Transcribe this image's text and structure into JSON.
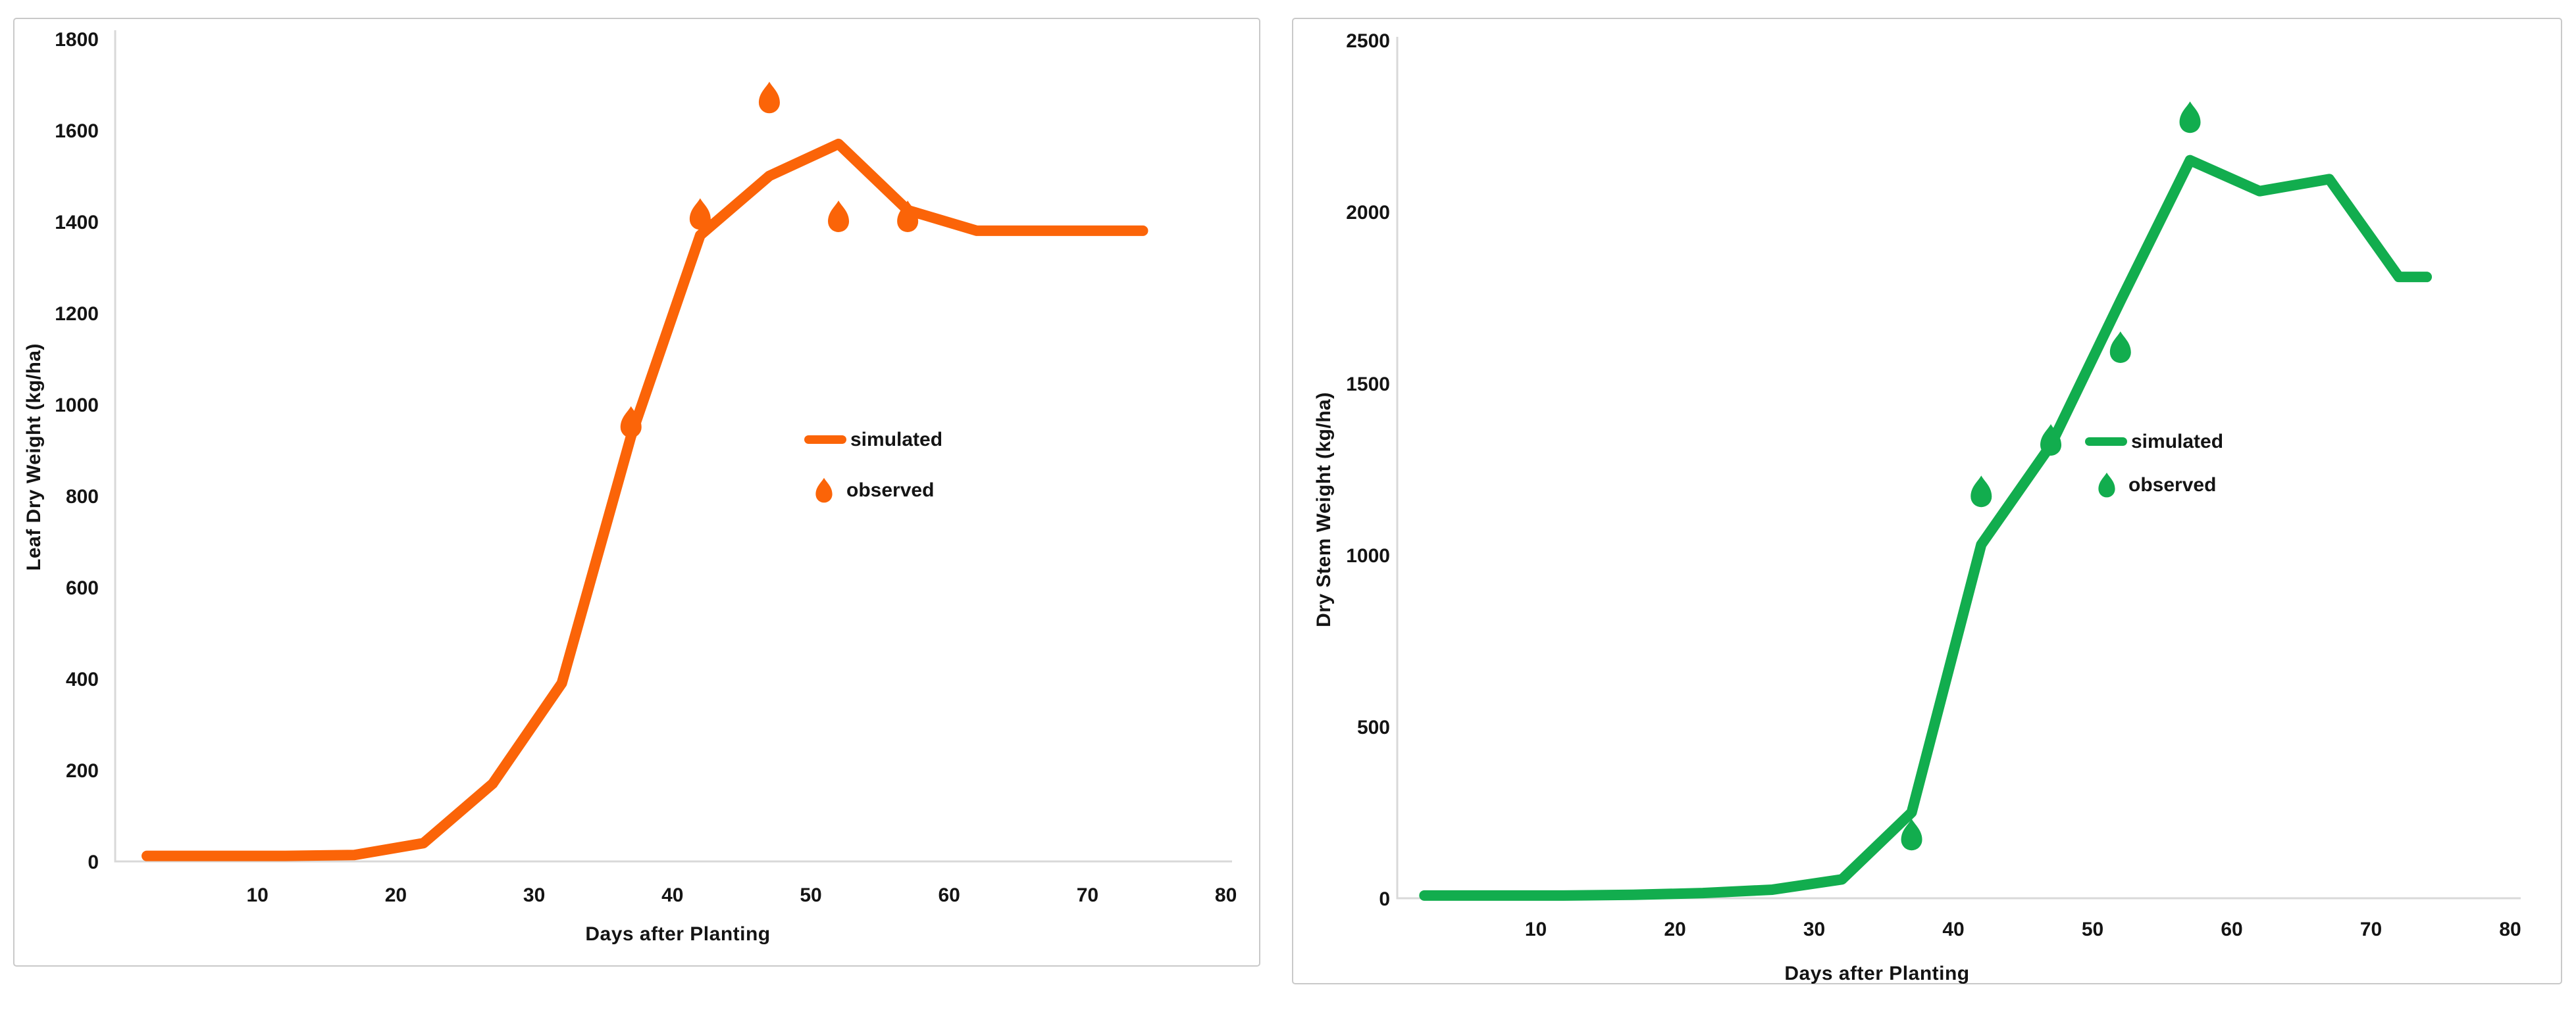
{
  "figure": {
    "description": "Two crop-model evaluation charts: simulated lines vs observed points",
    "background": "#ffffff"
  },
  "chart_data": [
    {
      "type": "line",
      "title": "",
      "xlabel": "Days after Planting",
      "ylabel": "Leaf Dry Weight (kg/ha)",
      "xlim": [
        0,
        80
      ],
      "ylim": [
        0,
        1800
      ],
      "x_ticks": [
        10,
        20,
        30,
        40,
        50,
        60,
        70,
        80
      ],
      "y_ticks": [
        0,
        200,
        400,
        600,
        800,
        1000,
        1200,
        1400,
        1600,
        1800
      ],
      "grid": false,
      "legend": [
        "simulated",
        "observed"
      ],
      "legend_position": "center-right",
      "color": "#fb6408",
      "axis_color": "#d9d9d9",
      "series": [
        {
          "name": "simulated",
          "style": "line",
          "x": [
            2,
            7,
            12,
            17,
            22,
            27,
            32,
            37,
            42,
            47,
            52,
            57,
            62,
            67,
            72,
            74
          ],
          "y": [
            12,
            12,
            12,
            14,
            40,
            170,
            390,
            930,
            1370,
            1500,
            1570,
            1425,
            1380,
            1380,
            1380,
            1380
          ]
        },
        {
          "name": "observed",
          "style": "scatter-drop",
          "x": [
            37,
            42,
            47,
            52,
            57
          ],
          "y": [
            950,
            1405,
            1660,
            1400,
            1400
          ]
        }
      ]
    },
    {
      "type": "line",
      "title": "",
      "xlabel": "Days after Planting",
      "ylabel": "Dry Stem Weight (kg/ha)",
      "xlim": [
        0,
        80
      ],
      "ylim": [
        0,
        2500
      ],
      "x_ticks": [
        10,
        20,
        30,
        40,
        50,
        60,
        70,
        80
      ],
      "y_ticks": [
        0,
        500,
        1000,
        1500,
        2000,
        2500
      ],
      "grid": false,
      "legend": [
        "simulated",
        "observed"
      ],
      "legend_position": "center-right",
      "color": "#12ad4e",
      "axis_color": "#d9d9d9",
      "series": [
        {
          "name": "simulated",
          "style": "line",
          "x": [
            2,
            7,
            12,
            17,
            22,
            27,
            32,
            37,
            42,
            47,
            52,
            57,
            62,
            67,
            72,
            74
          ],
          "y": [
            8,
            8,
            8,
            10,
            15,
            25,
            55,
            250,
            1030,
            1320,
            1740,
            2150,
            2060,
            2095,
            1810,
            1810
          ]
        },
        {
          "name": "observed",
          "style": "scatter-drop",
          "x": [
            37,
            42,
            47,
            52,
            57
          ],
          "y": [
            170,
            1170,
            1320,
            1590,
            2260
          ]
        }
      ]
    }
  ]
}
